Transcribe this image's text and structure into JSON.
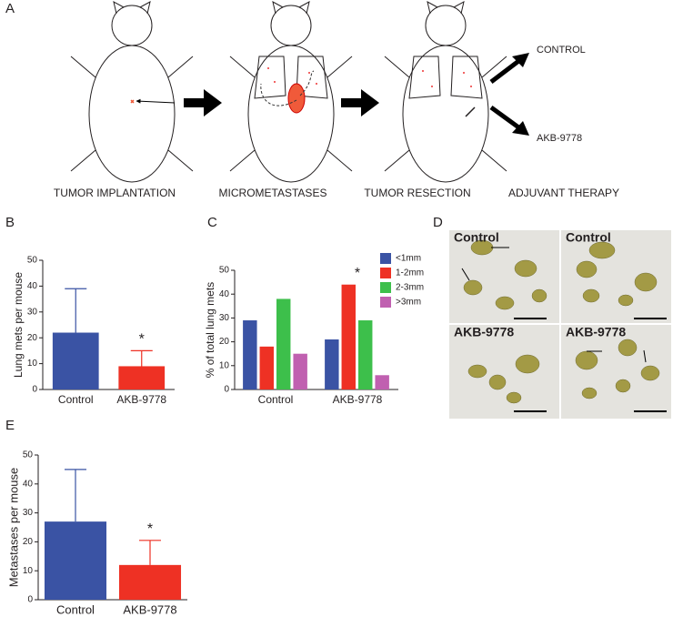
{
  "panel_labels": [
    "A",
    "B",
    "C",
    "D",
    "E"
  ],
  "diagram": {
    "steps": [
      "TUMOR IMPLANTATION",
      "MICROMETASTASES",
      "TUMOR RESECTION",
      "ADJUVANT THERAPY"
    ],
    "outcomes": [
      "CONTROL",
      "AKB-9778"
    ]
  },
  "photos": {
    "labels": [
      "Control",
      "Control",
      "AKB-9778",
      "AKB-9778"
    ]
  },
  "chart_data": [
    {
      "type": "bar",
      "ylabel": "Lung mets per mouse",
      "categories": [
        "Control",
        "AKB-9778"
      ],
      "values": [
        22,
        9
      ],
      "errors": [
        17,
        6
      ],
      "colors": [
        "#3a53a4",
        "#ee3124"
      ],
      "ylim": [
        0,
        50
      ],
      "yticks": [
        0,
        10,
        20,
        30,
        40,
        50
      ],
      "annotation": "*"
    },
    {
      "type": "grouped-bar",
      "ylabel": "% of total lung mets",
      "categories": [
        "Control",
        "AKB-9778"
      ],
      "series": [
        {
          "name": "<1mm",
          "color": "#3a53a4",
          "values": [
            29,
            21
          ]
        },
        {
          "name": "1-2mm",
          "color": "#ee3124",
          "values": [
            18,
            44
          ]
        },
        {
          "name": "2-3mm",
          "color": "#3dbf4b",
          "values": [
            38,
            29
          ]
        },
        {
          "name": ">3mm",
          "color": "#c060b0",
          "values": [
            15,
            6
          ]
        }
      ],
      "ylim": [
        0,
        50
      ],
      "yticks": [
        0,
        10,
        20,
        30,
        40,
        50
      ],
      "annotation": "*"
    },
    {
      "type": "bar",
      "ylabel": "Metastases per mouse",
      "categories": [
        "Control",
        "AKB-9778"
      ],
      "values": [
        27,
        12
      ],
      "errors": [
        18,
        8.5
      ],
      "colors": [
        "#3a53a4",
        "#ee3124"
      ],
      "ylim": [
        0,
        50
      ],
      "yticks": [
        0,
        10,
        20,
        30,
        40,
        50
      ],
      "annotation": "*"
    }
  ]
}
